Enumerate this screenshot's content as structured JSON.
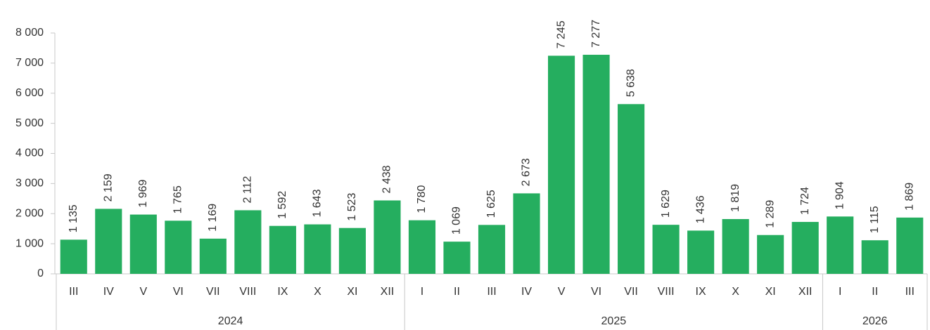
{
  "chart_data": {
    "type": "bar",
    "color": "#25ae5f",
    "groups": [
      {
        "name": "2024",
        "categories": [
          "III",
          "IV",
          "V",
          "VI",
          "VII",
          "VIII",
          "IX",
          "X",
          "XI",
          "XII"
        ]
      },
      {
        "name": "2025",
        "categories": [
          "I",
          "II",
          "III",
          "IV",
          "V",
          "VI",
          "VII",
          "VIII",
          "IX",
          "X",
          "XI",
          "XII"
        ]
      },
      {
        "name": "2026",
        "categories": [
          "I",
          "II",
          "III"
        ]
      }
    ],
    "values": [
      1135,
      2159,
      1969,
      1765,
      1169,
      2112,
      1592,
      1643,
      1523,
      2438,
      1780,
      1069,
      1625,
      2673,
      7245,
      7277,
      5638,
      1629,
      1436,
      1819,
      1289,
      1724,
      1904,
      1115,
      1869
    ],
    "value_labels": [
      "1 135",
      "2 159",
      "1 969",
      "1 765",
      "1 169",
      "2 112",
      "1 592",
      "1 643",
      "1 523",
      "2 438",
      "1 780",
      "1 069",
      "1 625",
      "2 673",
      "7 245",
      "7 277",
      "5 638",
      "1 629",
      "1 436",
      "1 819",
      "1 289",
      "1 724",
      "1 904",
      "1 115",
      "1 869"
    ],
    "ylim": [
      0,
      8000
    ],
    "yticks": [
      0,
      {
        "value": 1000,
        "label": "1 000"
      },
      {
        "value": 2000,
        "label": "2 000"
      },
      {
        "value": 3000,
        "label": "3 000"
      },
      {
        "value": 4000,
        "label": "4 000"
      },
      {
        "value": 5000,
        "label": "5 000"
      },
      {
        "value": 6000,
        "label": "6 000"
      },
      {
        "value": 7000,
        "label": "7 000"
      },
      {
        "value": 8000,
        "label": "8 000"
      }
    ]
  }
}
